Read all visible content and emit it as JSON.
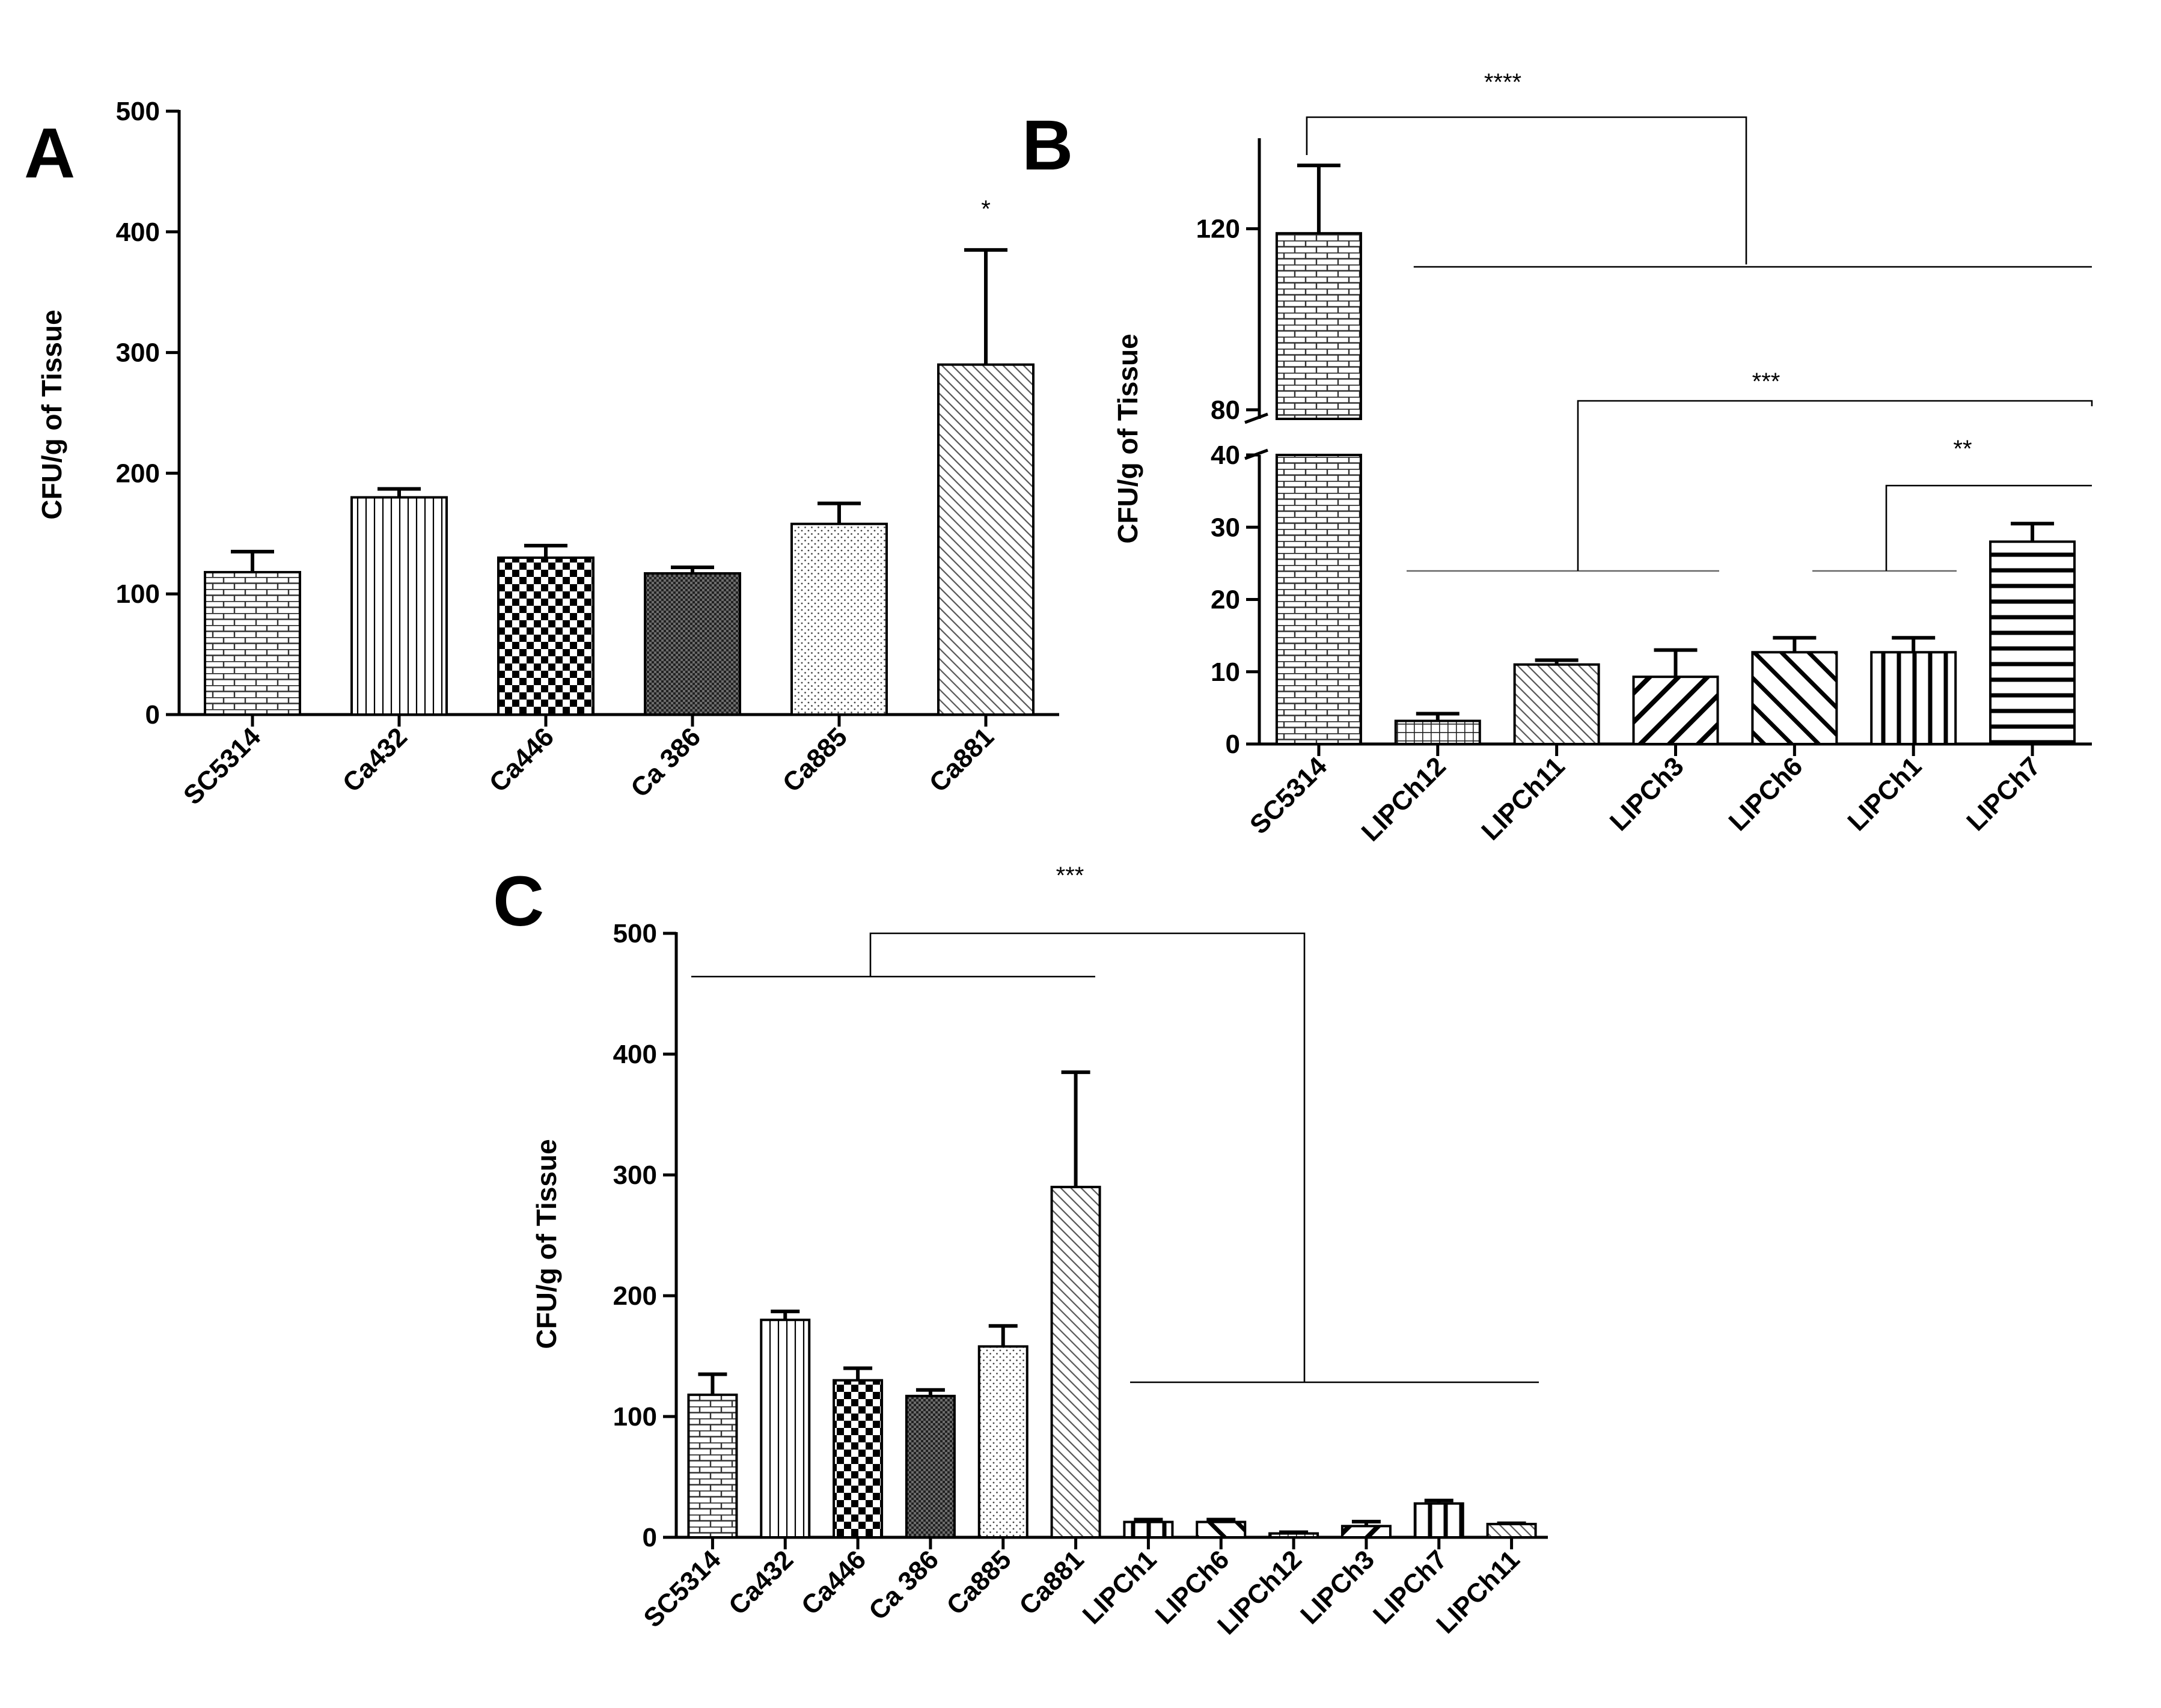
{
  "chart_data": [
    {
      "panel": "A",
      "type": "bar",
      "ylabel": "CFU/g of Tissue",
      "ylim": [
        0,
        500
      ],
      "yticks": [
        0,
        100,
        200,
        300,
        400,
        500
      ],
      "categories": [
        "SC5314",
        "Ca432",
        "Ca446",
        "Ca 386",
        "Ca885",
        "Ca881"
      ],
      "values": [
        118,
        180,
        130,
        117,
        158,
        290
      ],
      "errors": [
        17,
        7,
        10,
        5,
        17,
        95
      ],
      "patterns": [
        "brick",
        "vertical",
        "checker",
        "dense",
        "dots",
        "diagonal"
      ],
      "annotations": [
        {
          "label": "*",
          "category": "Ca881"
        }
      ]
    },
    {
      "panel": "B",
      "type": "bar",
      "ylabel": "CFU/g of Tissue",
      "axis_break": {
        "lower": [
          0,
          40
        ],
        "upper": [
          78,
          140
        ]
      },
      "yticks_lower": [
        0,
        10,
        20,
        30,
        40
      ],
      "yticks_upper": [
        80,
        120
      ],
      "categories": [
        "SC5314",
        "LIPCh12",
        "LIPCh11",
        "LIPCh3",
        "LIPCh6",
        "LIPCh1",
        "LIPCh7"
      ],
      "values": [
        119,
        3.2,
        11,
        9.3,
        12.7,
        12.7,
        28
      ],
      "errors": [
        15,
        1,
        0.6,
        3.7,
        2,
        2,
        2.5
      ],
      "patterns": [
        "brick",
        "grid",
        "diagonal",
        "diagonal-bold",
        "diagonal-bold2",
        "vertical-bold",
        "horizontal-bold"
      ],
      "annotations": [
        {
          "label": "****",
          "from": [
            "SC5314"
          ],
          "to": [
            "LIPCh12",
            "LIPCh11",
            "LIPCh3",
            "LIPCh6",
            "LIPCh1",
            "LIPCh7"
          ]
        },
        {
          "label": "***",
          "from": [
            "LIPCh12",
            "LIPCh11",
            "LIPCh3"
          ],
          "to": [
            "LIPCh7"
          ]
        },
        {
          "label": "**",
          "from": [
            "LIPCh6",
            "LIPCh1"
          ],
          "to": [
            "LIPCh7"
          ]
        }
      ]
    },
    {
      "panel": "C",
      "type": "bar",
      "ylabel": "CFU/g of Tissue",
      "ylim": [
        0,
        500
      ],
      "yticks": [
        0,
        100,
        200,
        300,
        400,
        500
      ],
      "categories": [
        "SC5314",
        "Ca432",
        "Ca446",
        "Ca 386",
        "Ca885",
        "Ca881",
        "LIPCh1",
        "LIPCh6",
        "LIPCh12",
        "LIPCh3",
        "LIPCh7",
        "LIPCh11"
      ],
      "values": [
        118,
        180,
        130,
        117,
        158,
        290,
        12.7,
        12.7,
        3.2,
        9.3,
        28,
        11
      ],
      "errors": [
        17,
        7,
        10,
        5,
        17,
        95,
        2,
        2,
        1,
        3.7,
        2.5,
        0.6
      ],
      "patterns": [
        "brick",
        "vertical",
        "checker",
        "dense",
        "dots",
        "diagonal",
        "vertical-bold",
        "diagonal-bold2",
        "grid",
        "diagonal-bold",
        "vertical-bold",
        "diagonal"
      ],
      "annotations": [
        {
          "label": "***",
          "from": [
            "SC5314",
            "Ca432",
            "Ca446",
            "Ca 386",
            "Ca885",
            "Ca881"
          ],
          "to": [
            "LIPCh1",
            "LIPCh6",
            "LIPCh12",
            "LIPCh3",
            "LIPCh7",
            "LIPCh11"
          ]
        }
      ]
    }
  ]
}
